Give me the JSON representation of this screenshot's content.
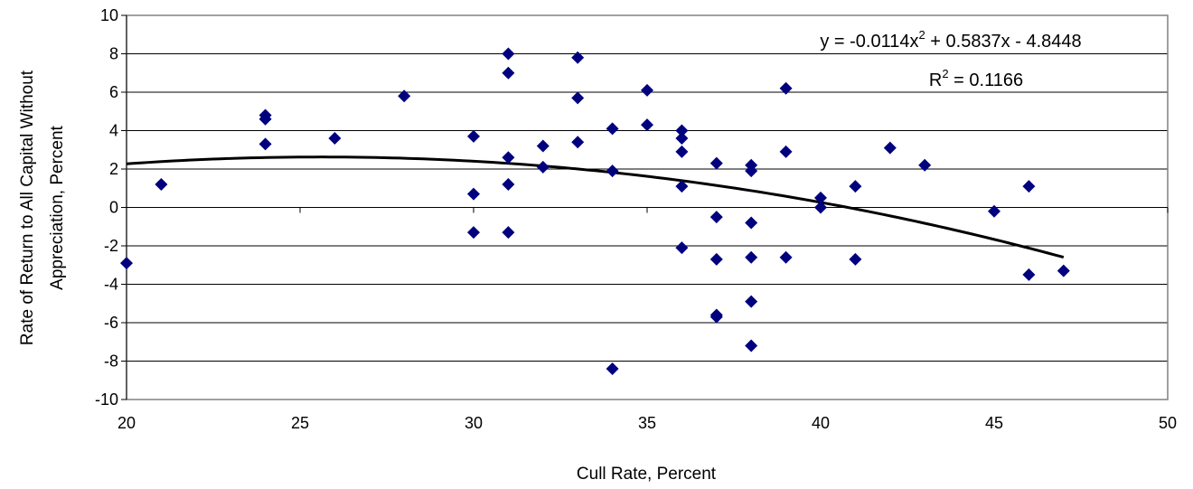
{
  "chart_data": {
    "type": "scatter",
    "xlabel": "Cull Rate, Percent",
    "ylabel_lines": [
      "Rate of Return to All Capital Without",
      "Appreciation, Percent"
    ],
    "xlim": [
      20,
      50
    ],
    "ylim": [
      -10,
      10
    ],
    "xticks": [
      "20",
      "25",
      "30",
      "35",
      "40",
      "45",
      "50"
    ],
    "yticks": [
      "10",
      "8",
      "6",
      "4",
      "2",
      "0",
      "-2",
      "-4",
      "-6",
      "-8",
      "-10"
    ],
    "grid": "horizontal",
    "marker_color": "#00007F",
    "trend_color": "#000000",
    "trendline": {
      "type": "polynomial",
      "coefficients": [
        -0.0114,
        0.5837,
        -4.8448
      ],
      "x_range": [
        20,
        47
      ],
      "equation_text": {
        "prefix": "y = -0.0114x",
        "sup": "2",
        "suffix": " + 0.5837x - 4.8448"
      },
      "r2_text": {
        "prefix": "R",
        "sup": "2",
        "suffix": " = 0.1166"
      }
    },
    "points": [
      {
        "x": 20,
        "y": -2.9
      },
      {
        "x": 21,
        "y": 1.2
      },
      {
        "x": 24,
        "y": 4.8
      },
      {
        "x": 24,
        "y": 4.6
      },
      {
        "x": 24,
        "y": 3.3
      },
      {
        "x": 26,
        "y": 3.6
      },
      {
        "x": 28,
        "y": 5.8
      },
      {
        "x": 30,
        "y": 3.7
      },
      {
        "x": 30,
        "y": 0.7
      },
      {
        "x": 30,
        "y": -1.3
      },
      {
        "x": 31,
        "y": 8.0
      },
      {
        "x": 31,
        "y": 7.0
      },
      {
        "x": 31,
        "y": 2.6
      },
      {
        "x": 31,
        "y": 1.2
      },
      {
        "x": 31,
        "y": -1.3
      },
      {
        "x": 32,
        "y": 3.2
      },
      {
        "x": 32,
        "y": 2.1
      },
      {
        "x": 33,
        "y": 7.8
      },
      {
        "x": 33,
        "y": 5.7
      },
      {
        "x": 33,
        "y": 3.4
      },
      {
        "x": 34,
        "y": 4.1
      },
      {
        "x": 34,
        "y": 1.9
      },
      {
        "x": 34,
        "y": -8.4
      },
      {
        "x": 35,
        "y": 6.1
      },
      {
        "x": 35,
        "y": 4.3
      },
      {
        "x": 36,
        "y": 4.0
      },
      {
        "x": 36,
        "y": 3.6
      },
      {
        "x": 36,
        "y": 2.9
      },
      {
        "x": 36,
        "y": 1.1
      },
      {
        "x": 36,
        "y": -2.1
      },
      {
        "x": 37,
        "y": 2.3
      },
      {
        "x": 37,
        "y": -0.5
      },
      {
        "x": 37,
        "y": -2.7
      },
      {
        "x": 37,
        "y": -5.6
      },
      {
        "x": 37,
        "y": -5.7
      },
      {
        "x": 38,
        "y": 2.2
      },
      {
        "x": 38,
        "y": 1.9
      },
      {
        "x": 38,
        "y": -0.8
      },
      {
        "x": 38,
        "y": -2.6
      },
      {
        "x": 38,
        "y": -4.9
      },
      {
        "x": 38,
        "y": -7.2
      },
      {
        "x": 39,
        "y": 6.2
      },
      {
        "x": 39,
        "y": 2.9
      },
      {
        "x": 39,
        "y": -2.6
      },
      {
        "x": 40,
        "y": 0.5
      },
      {
        "x": 40,
        "y": 0.0
      },
      {
        "x": 41,
        "y": 1.1
      },
      {
        "x": 41,
        "y": -2.7
      },
      {
        "x": 42,
        "y": 3.1
      },
      {
        "x": 43,
        "y": 2.2
      },
      {
        "x": 45,
        "y": -0.2
      },
      {
        "x": 46,
        "y": 1.1
      },
      {
        "x": 46,
        "y": -3.5
      },
      {
        "x": 47,
        "y": -3.3
      }
    ]
  }
}
